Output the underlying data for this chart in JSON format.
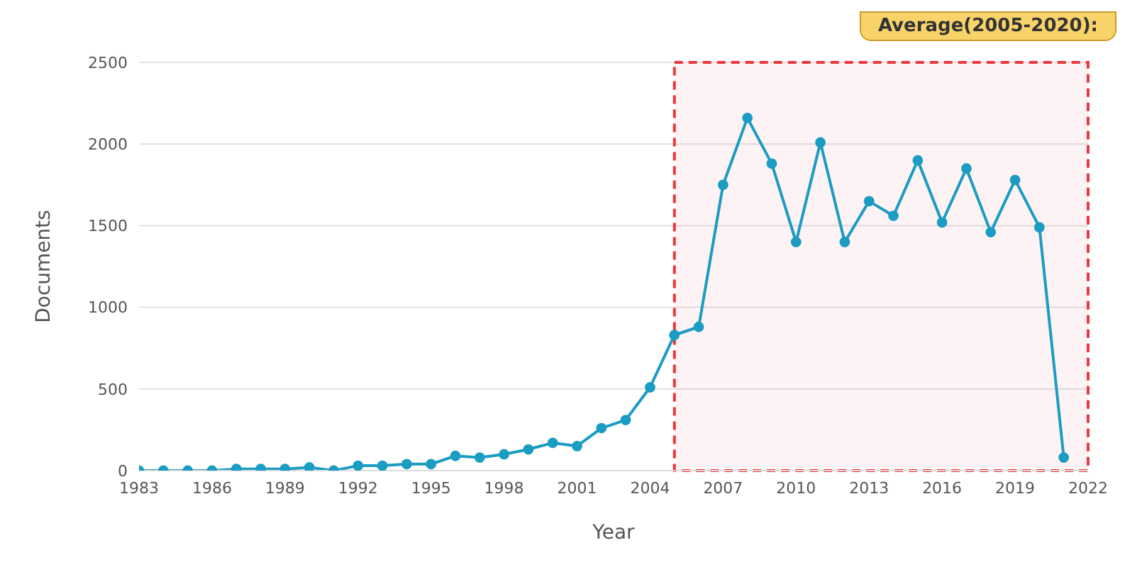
{
  "chart_data": {
    "type": "line",
    "xlabel": "Year",
    "ylabel": "Documents",
    "x": [
      1983,
      1984,
      1985,
      1986,
      1987,
      1988,
      1989,
      1990,
      1991,
      1992,
      1993,
      1994,
      1995,
      1996,
      1997,
      1998,
      1999,
      2000,
      2001,
      2002,
      2003,
      2004,
      2005,
      2006,
      2007,
      2008,
      2009,
      2010,
      2011,
      2012,
      2013,
      2014,
      2015,
      2016,
      2017,
      2018,
      2019,
      2020,
      2021
    ],
    "series": [
      {
        "color": "#1b9cc2",
        "values": [
          0,
          0,
          0,
          0,
          10,
          10,
          10,
          20,
          0,
          30,
          30,
          40,
          40,
          90,
          80,
          100,
          130,
          170,
          150,
          260,
          310,
          510,
          830,
          880,
          1750,
          2160,
          1880,
          1400,
          2010,
          1400,
          1650,
          1560,
          1900,
          1520,
          1850,
          1460,
          1780,
          1490,
          80
        ]
      }
    ],
    "xlim": [
      1983,
      2022
    ],
    "xticks": [
      1983,
      1986,
      1989,
      1992,
      1995,
      1998,
      2001,
      2004,
      2007,
      2010,
      2013,
      2016,
      2019,
      2022
    ],
    "ylim": [
      0,
      2500
    ],
    "yticks": [
      0,
      500,
      1000,
      1500,
      2000,
      2500
    ],
    "grid": "y",
    "marker": "circle",
    "line_style": "solid",
    "legend": false,
    "bands": [
      {
        "axis": "x",
        "from": 2005,
        "to": 2022,
        "color": "#e8383d"
      }
    ],
    "annotations": [
      "Average(2005-2020):"
    ]
  }
}
